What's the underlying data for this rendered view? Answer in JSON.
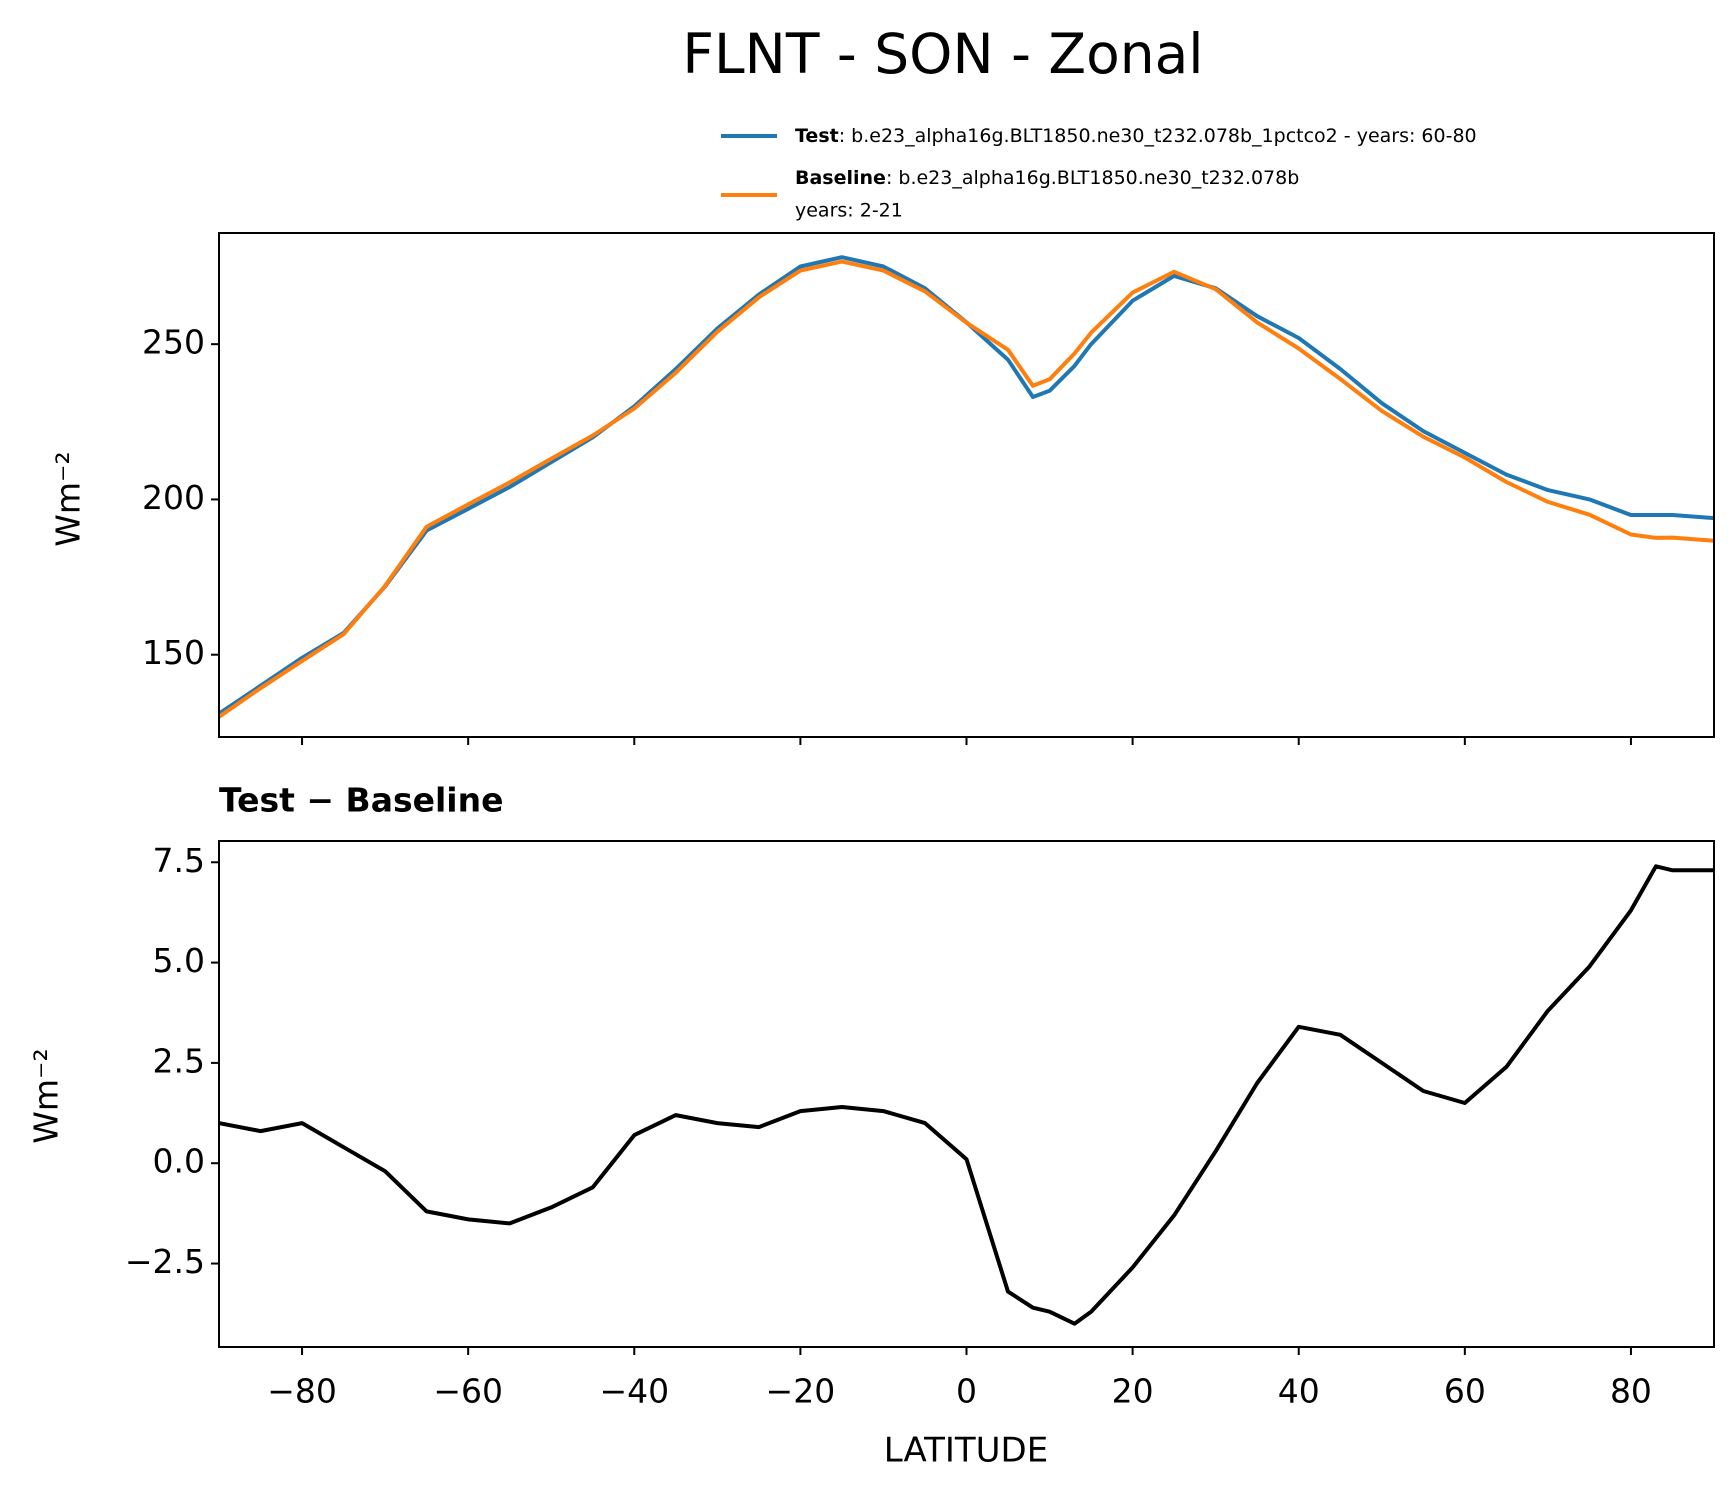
{
  "chart_data": [
    {
      "type": "line",
      "title": "FLNT - SON - Zonal",
      "ylabel": "Wm⁻²",
      "x": [
        -90,
        -85,
        -80,
        -75,
        -70,
        -65,
        -60,
        -55,
        -50,
        -45,
        -40,
        -35,
        -30,
        -25,
        -20,
        -15,
        -10,
        -5,
        0,
        5,
        8,
        10,
        13,
        15,
        20,
        25,
        30,
        35,
        40,
        45,
        50,
        55,
        60,
        65,
        70,
        75,
        80,
        83,
        85,
        90
      ],
      "series": [
        {
          "name": "Test",
          "label": ": b.e23_alpha16g.BLT1850.ne30_t232.078b_1pctco2 - years: 60-80",
          "color": "#1f77b4",
          "values": [
            131,
            140,
            149,
            157,
            172,
            190,
            197,
            204,
            212,
            220,
            230,
            242,
            255,
            266,
            275,
            278,
            275,
            268,
            257,
            245,
            233,
            235,
            243,
            250,
            264,
            272,
            268,
            259,
            252,
            242,
            231,
            222,
            215,
            208,
            203,
            200,
            195,
            195,
            195,
            194
          ]
        },
        {
          "name": "Baseline",
          "label": ": b.e23_alpha16g.BLT1850.ne30_t232.078b",
          "label2": "years: 2-21",
          "color": "#ff7f0e",
          "values": [
            130,
            139.2,
            148,
            156.6,
            172.2,
            191.2,
            198.4,
            205.5,
            213.1,
            220.6,
            229.3,
            240.8,
            254,
            265.1,
            273.7,
            276.6,
            273.7,
            267,
            256.9,
            248.2,
            236.6,
            238.7,
            247,
            253.7,
            266.6,
            273.3,
            267.7,
            257,
            248.6,
            238.8,
            228.5,
            220.2,
            213.5,
            205.6,
            199.2,
            195.1,
            188.7,
            187.6,
            187.7,
            186.7
          ]
        }
      ],
      "xlim": [
        -90,
        90
      ],
      "ylim": [
        123.5,
        285.8
      ],
      "yticks": [
        150,
        200,
        250
      ],
      "xticks": [
        -80,
        -60,
        -40,
        -20,
        0,
        20,
        40,
        60,
        80
      ]
    },
    {
      "type": "line",
      "subtitle": "Test − Baseline",
      "ylabel": "Wm⁻²",
      "xlabel": "LATITUDE",
      "x": [
        -90,
        -85,
        -80,
        -75,
        -70,
        -65,
        -60,
        -55,
        -50,
        -45,
        -40,
        -35,
        -30,
        -25,
        -20,
        -15,
        -10,
        -5,
        0,
        5,
        8,
        10,
        13,
        15,
        20,
        25,
        30,
        35,
        40,
        45,
        50,
        55,
        60,
        65,
        70,
        75,
        80,
        83,
        85,
        90
      ],
      "series": [
        {
          "color": "#000000",
          "values": [
            1.0,
            0.8,
            1.0,
            0.4,
            -0.2,
            -1.2,
            -1.4,
            -1.5,
            -1.1,
            -0.6,
            0.7,
            1.2,
            1.0,
            0.9,
            1.3,
            1.4,
            1.3,
            1.0,
            0.1,
            -3.2,
            -3.6,
            -3.7,
            -4.0,
            -3.7,
            -2.6,
            -1.3,
            0.3,
            2.0,
            3.4,
            3.2,
            2.5,
            1.8,
            1.5,
            2.4,
            3.8,
            4.9,
            6.3,
            7.4,
            7.3,
            7.3
          ]
        }
      ],
      "xlim": [
        -90,
        90
      ],
      "ylim": [
        -4.58,
        8.03
      ],
      "yticks": [
        {
          "value": -2.5,
          "label": "−2.5"
        },
        {
          "value": 0,
          "label": "0.0"
        },
        {
          "value": 2.5,
          "label": "2.5"
        },
        {
          "value": 5,
          "label": "5.0"
        },
        {
          "value": 7.5,
          "label": "7.5"
        }
      ],
      "xticks": [
        {
          "value": -80,
          "label": "−80"
        },
        {
          "value": -60,
          "label": "−60"
        },
        {
          "value": -40,
          "label": "−40"
        },
        {
          "value": -20,
          "label": "−20"
        },
        0,
        20,
        40,
        60,
        80
      ]
    }
  ]
}
